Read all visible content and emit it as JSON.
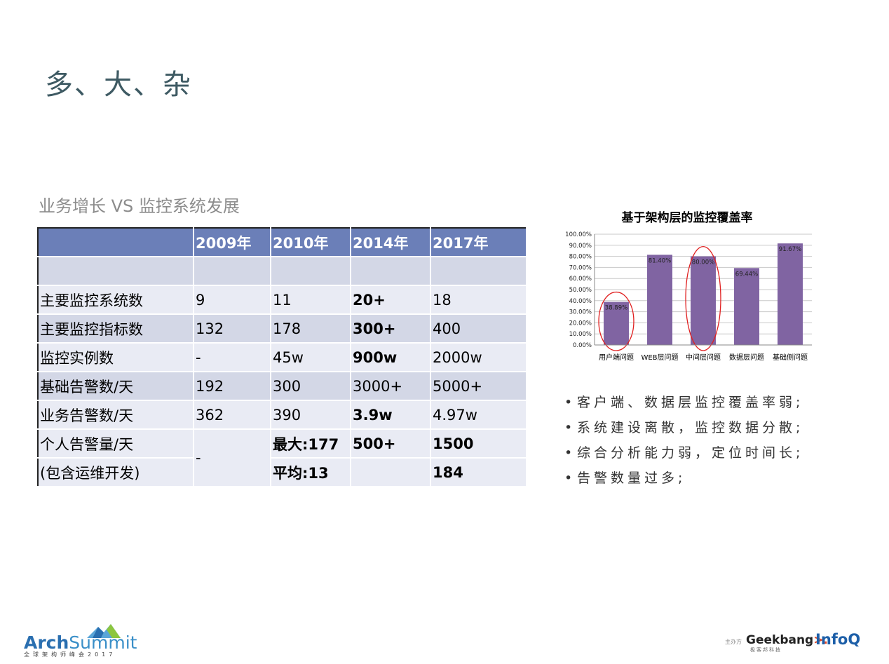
{
  "slide": {
    "title": "多、大、杂",
    "subtitle": "业务增长 VS 监控系统发展"
  },
  "table": {
    "headers": [
      "",
      "2009年",
      "2010年",
      "2014年",
      "2017年"
    ],
    "rows": [
      {
        "label": "",
        "values": [
          "",
          "",
          "",
          ""
        ]
      },
      {
        "label": "主要监控系统数",
        "values": [
          "9",
          "11",
          "20+",
          "18"
        ]
      },
      {
        "label": "主要监控指标数",
        "values": [
          "132",
          "178",
          "300+",
          "400"
        ]
      },
      {
        "label": "监控实例数",
        "values": [
          "-",
          "45w",
          "900w",
          "2000w"
        ]
      },
      {
        "label": "基础告警数/天",
        "values": [
          "192",
          "300",
          "3000+",
          "5000+"
        ]
      },
      {
        "label": "业务告警数/天",
        "values": [
          "362",
          "390",
          "3.9w",
          "4.97w"
        ]
      }
    ],
    "personal": {
      "label_line1": "个人告警量/天",
      "label_line2": "(包含运维开发)",
      "v2009": "-",
      "v2010_max": "最大:177",
      "v2010_avg": "平均:13",
      "v2014": "500+",
      "v2017_line1": "1500",
      "v2017_line2": "184"
    }
  },
  "chart_data": {
    "type": "bar",
    "title": "基于架构层的监控覆盖率",
    "categories": [
      "用户端问题",
      "WEB层问题",
      "中间层问题",
      "数据层问题",
      "基础侧问题"
    ],
    "values": [
      38.89,
      81.4,
      80.0,
      69.44,
      91.67
    ],
    "data_labels": [
      "38.89%",
      "81.40%",
      "80.00%",
      "69.44%",
      "91.67%"
    ],
    "ylim": [
      0,
      100
    ],
    "yticks": [
      "0.00%",
      "10.00%",
      "20.00%",
      "30.00%",
      "40.00%",
      "50.00%",
      "60.00%",
      "70.00%",
      "80.00%",
      "90.00%",
      "100.00%"
    ],
    "grid": true,
    "bar_color": "#8064a2",
    "highlight_color": "#e02020",
    "highlighted": [
      0,
      2
    ]
  },
  "bullets": {
    "marker": "•",
    "items": [
      "客户端、数据层监控覆盖率弱;",
      "系统建设离散，监控数据分散;",
      "综合分析能力弱，定位时间长;",
      "告警数量过多;"
    ]
  },
  "footer": {
    "logo_arch": "Arch",
    "logo_summit": "Summit",
    "logo_sub": "全球架构师峰会2017",
    "sponsor_label": "主办方",
    "geekbang": "Geekbang",
    "geekbang_arrow": ">.",
    "geekbang_sub": "极客邦科技",
    "infoq": "InfoQ"
  }
}
